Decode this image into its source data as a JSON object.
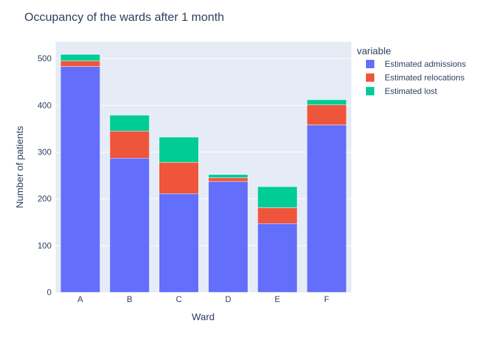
{
  "chart_data": {
    "type": "bar",
    "stacked": true,
    "title": "Occupancy of the wards after 1 month",
    "xlabel": "Ward",
    "ylabel": "Number of patients",
    "categories": [
      "A",
      "B",
      "C",
      "D",
      "E",
      "F"
    ],
    "ylim": [
      0,
      536
    ],
    "yticks": [
      0,
      100,
      200,
      300,
      400,
      500
    ],
    "grid": true,
    "legend": {
      "title": "variable",
      "placement": "right"
    },
    "series": [
      {
        "name": "Estimated admissions",
        "color": "#636efa",
        "values": [
          483,
          287,
          211,
          237,
          147,
          358
        ]
      },
      {
        "name": "Estimated relocations",
        "color": "#ef553b",
        "values": [
          12,
          58,
          67,
          8,
          34,
          43
        ]
      },
      {
        "name": "Estimated lost",
        "color": "#00cc96",
        "values": [
          14,
          34,
          54,
          7,
          45,
          11
        ]
      }
    ]
  }
}
